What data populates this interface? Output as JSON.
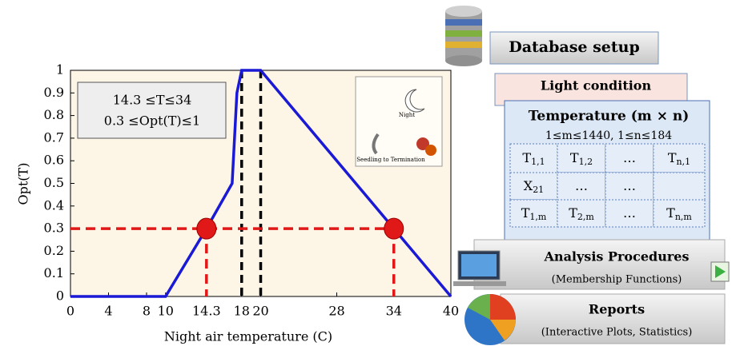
{
  "chart_data": {
    "type": "line",
    "xlabel": "Night air temperature (C)",
    "ylabel": "Opt(T)",
    "x": [
      0,
      10,
      14.3,
      17,
      17.5,
      18,
      20,
      34,
      40
    ],
    "series": [
      {
        "color": "#1a1ad6",
        "values": [
          0,
          0,
          0.3,
          0.5,
          0.9,
          1,
          1,
          0.3,
          0
        ]
      }
    ],
    "markers": {
      "color": "#e01818",
      "x": [
        14.3,
        34
      ],
      "values": [
        0.3,
        0.3
      ]
    },
    "vlines": {
      "color": "#000000",
      "x": [
        18,
        20
      ]
    },
    "xlim": [
      0,
      40
    ],
    "ylim": [
      0,
      1
    ],
    "xticks": [
      0,
      4,
      8,
      10,
      14.3,
      18,
      20,
      28,
      34,
      40
    ],
    "yticks": [
      0,
      0.1,
      0.2,
      0.3,
      0.4,
      0.5,
      0.6,
      0.7,
      0.8,
      0.9,
      1
    ],
    "annotation": [
      "14.3 ≤T≤34",
      "0.3 ≤Opt(T)≤1"
    ],
    "inset": [
      "Night",
      "Seedling to Termination"
    ]
  },
  "panel": {
    "database": "Database setup",
    "light": "Light condition",
    "temperature": {
      "title": "Temperature (m × n)",
      "range": "1≤m≤1440, 1≤n≤184",
      "rows": [
        [
          {
            "base": "T",
            "sub": "1,1"
          },
          {
            "base": "T",
            "sub": "1,2"
          },
          {
            "base": "…"
          },
          {
            "base": "T",
            "sub": "n,1"
          }
        ],
        [
          {
            "base": "X",
            "sub": "21"
          },
          {
            "base": "…"
          },
          {
            "base": "…"
          },
          {
            "base": ""
          }
        ],
        [
          {
            "base": "T",
            "sub": "1,m"
          },
          {
            "base": "T",
            "sub": "2,m"
          },
          {
            "base": "…"
          },
          {
            "base": "T",
            "sub": "n,m"
          }
        ]
      ]
    },
    "analysis": {
      "title": "Analysis Procedures",
      "subtitle": "(Membership Functions)"
    },
    "reports": {
      "title": "Reports",
      "subtitle": "(Interactive Plots, Statistics)"
    }
  }
}
